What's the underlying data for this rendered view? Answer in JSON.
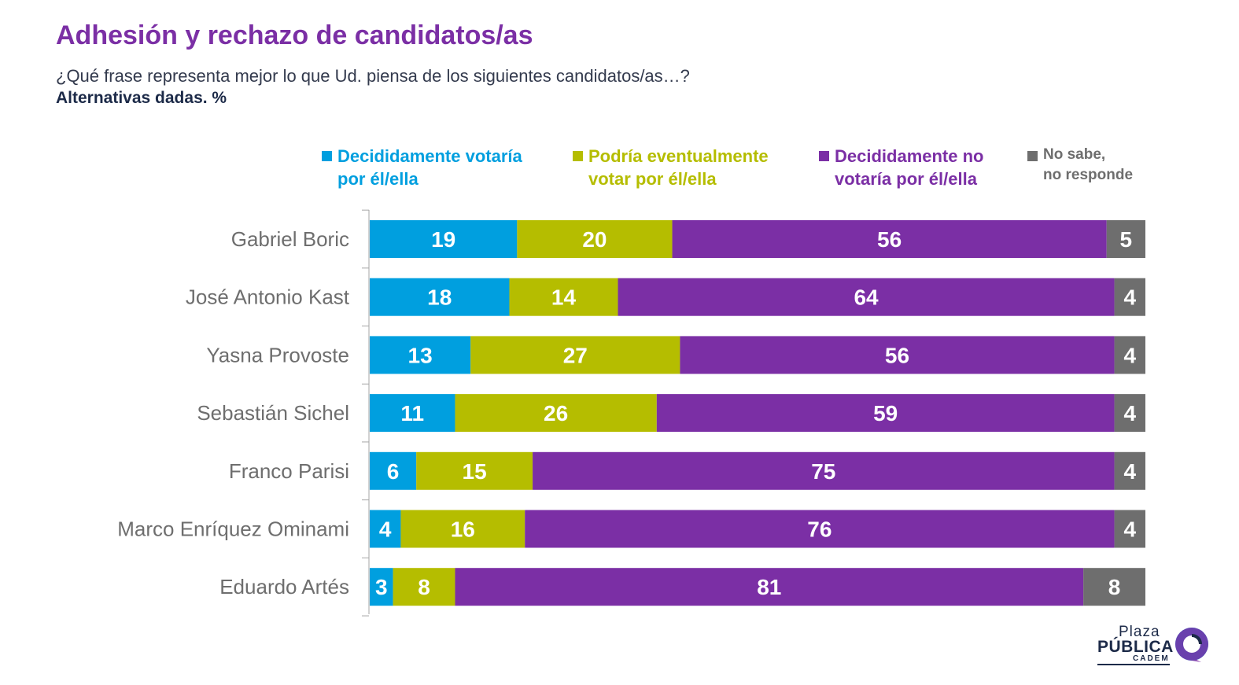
{
  "header": {
    "title": "Adhesión y rechazo de candidatos/as",
    "subtitle": "¿Qué frase representa mejor lo que Ud. piensa de los siguientes candidatos/as…?",
    "note": "Alternativas dadas. %"
  },
  "legend": [
    {
      "label": "Decididamente votaría\npor él/ella",
      "color": "#009fdf"
    },
    {
      "label": "Podría eventualmente\nvotar por él/ella",
      "color": "#b5bd00"
    },
    {
      "label": "Decididamente no\nvotaría por él/ella",
      "color": "#7b2fa5"
    },
    {
      "label": "No sabe,\nno responde",
      "color": "#6e6e6e"
    }
  ],
  "chart_data": {
    "type": "bar",
    "orientation": "horizontal",
    "stacked": true,
    "categories": [
      "Gabriel Boric",
      "José Antonio Kast",
      "Yasna Provoste",
      "Sebastián Sichel",
      "Franco Parisi",
      "Marco Enríquez Ominami",
      "Eduardo Artés"
    ],
    "series": [
      {
        "name": "Decididamente votaría por él/ella",
        "color": "#009fdf",
        "values": [
          19,
          18,
          13,
          11,
          6,
          4,
          3
        ]
      },
      {
        "name": "Podría eventualmente votar por él/ella",
        "color": "#b5bd00",
        "values": [
          20,
          14,
          27,
          26,
          15,
          16,
          8
        ]
      },
      {
        "name": "Decididamente no votaría por él/ella",
        "color": "#7b2fa5",
        "values": [
          56,
          64,
          56,
          59,
          75,
          76,
          81
        ]
      },
      {
        "name": "No sabe, no responde",
        "color": "#6e6e6e",
        "values": [
          5,
          4,
          4,
          4,
          4,
          4,
          8
        ]
      }
    ],
    "xlim": [
      0,
      100
    ],
    "legend_position": "top",
    "grid": false
  },
  "brand": {
    "line1": "Plaza",
    "line2": "PÚBLICA",
    "line3": "CADEM",
    "colors": {
      "navy": "#1c2a48",
      "blue": "#009fdf",
      "purple": "#7b2fa5"
    }
  }
}
